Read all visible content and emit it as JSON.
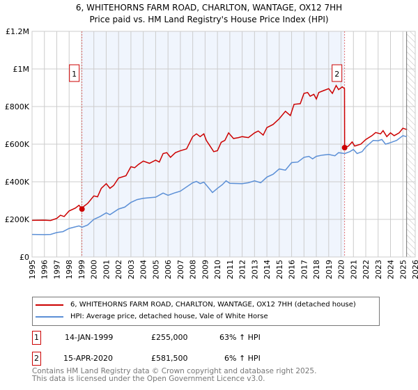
{
  "title": "6, WHITEHORNS FARM ROAD, CHARLTON, WANTAGE, OX12 7HH",
  "subtitle": "Price paid vs. HM Land Registry's House Price Index (HPI)",
  "chart_data": {
    "type": "line",
    "xlim": [
      1995,
      2026
    ],
    "ylim": [
      0,
      1200000
    ],
    "x_ticks": [
      "1995",
      "1996",
      "1997",
      "1998",
      "1999",
      "2000",
      "2001",
      "2002",
      "2003",
      "2004",
      "2005",
      "2006",
      "2007",
      "2008",
      "2009",
      "2010",
      "2011",
      "2012",
      "2013",
      "2014",
      "2015",
      "2016",
      "2017",
      "2018",
      "2019",
      "2020",
      "2021",
      "2022",
      "2023",
      "2024",
      "2025",
      "2026"
    ],
    "y_ticks": [
      {
        "v": 0,
        "label": "£0"
      },
      {
        "v": 200000,
        "label": "£200K"
      },
      {
        "v": 400000,
        "label": "£400K"
      },
      {
        "v": 600000,
        "label": "£600K"
      },
      {
        "v": 800000,
        "label": "£800K"
      },
      {
        "v": 1000000,
        "label": "£1M"
      },
      {
        "v": 1200000,
        "label": "£1.2M"
      }
    ],
    "grid": true,
    "shaded_range": [
      1999.04,
      2020.29
    ],
    "hatched_from": 2025.3,
    "series": [
      {
        "name": "6, WHITEHORNS FARM ROAD, CHARLTON, WANTAGE, OX12 7HH (detached house)",
        "color": "#cc0000",
        "points": [
          [
            1995,
            195000
          ],
          [
            1996,
            196000
          ],
          [
            1996.5,
            194000
          ],
          [
            1997,
            205000
          ],
          [
            1997.3,
            222000
          ],
          [
            1997.6,
            215000
          ],
          [
            1998,
            245000
          ],
          [
            1998.5,
            260000
          ],
          [
            1998.8,
            275000
          ],
          [
            1999.04,
            255000
          ],
          [
            1999.2,
            270000
          ],
          [
            1999.5,
            285000
          ],
          [
            2000,
            325000
          ],
          [
            2000.3,
            320000
          ],
          [
            2000.6,
            365000
          ],
          [
            2001,
            390000
          ],
          [
            2001.3,
            365000
          ],
          [
            2001.6,
            380000
          ],
          [
            2002,
            420000
          ],
          [
            2002.6,
            432000
          ],
          [
            2003,
            480000
          ],
          [
            2003.3,
            475000
          ],
          [
            2003.6,
            492000
          ],
          [
            2004,
            510000
          ],
          [
            2004.5,
            498000
          ],
          [
            2005,
            515000
          ],
          [
            2005.3,
            505000
          ],
          [
            2005.6,
            550000
          ],
          [
            2005.9,
            555000
          ],
          [
            2006.2,
            530000
          ],
          [
            2006.6,
            555000
          ],
          [
            2007,
            565000
          ],
          [
            2007.5,
            575000
          ],
          [
            2008,
            640000
          ],
          [
            2008.3,
            655000
          ],
          [
            2008.6,
            640000
          ],
          [
            2008.9,
            655000
          ],
          [
            2009.1,
            620000
          ],
          [
            2009.4,
            590000
          ],
          [
            2009.7,
            560000
          ],
          [
            2010,
            565000
          ],
          [
            2010.3,
            610000
          ],
          [
            2010.6,
            620000
          ],
          [
            2010.9,
            660000
          ],
          [
            2011.3,
            630000
          ],
          [
            2011.7,
            635000
          ],
          [
            2012,
            640000
          ],
          [
            2012.5,
            635000
          ],
          [
            2013,
            660000
          ],
          [
            2013.3,
            670000
          ],
          [
            2013.7,
            648000
          ],
          [
            2014,
            688000
          ],
          [
            2014.5,
            705000
          ],
          [
            2015,
            735000
          ],
          [
            2015.5,
            775000
          ],
          [
            2015.9,
            752000
          ],
          [
            2016.2,
            812000
          ],
          [
            2016.7,
            815000
          ],
          [
            2017,
            870000
          ],
          [
            2017.3,
            875000
          ],
          [
            2017.5,
            855000
          ],
          [
            2017.8,
            865000
          ],
          [
            2018,
            840000
          ],
          [
            2018.2,
            875000
          ],
          [
            2018.6,
            885000
          ],
          [
            2019,
            895000
          ],
          [
            2019.3,
            870000
          ],
          [
            2019.6,
            912000
          ],
          [
            2019.8,
            890000
          ],
          [
            2020.1,
            905000
          ],
          [
            2020.28,
            895000
          ],
          [
            2020.29,
            581500
          ],
          [
            2020.6,
            590000
          ],
          [
            2020.9,
            612000
          ],
          [
            2021.1,
            590000
          ],
          [
            2021.6,
            600000
          ],
          [
            2022,
            625000
          ],
          [
            2022.5,
            645000
          ],
          [
            2022.8,
            662000
          ],
          [
            2023.2,
            655000
          ],
          [
            2023.4,
            672000
          ],
          [
            2023.7,
            640000
          ],
          [
            2024,
            660000
          ],
          [
            2024.3,
            645000
          ],
          [
            2024.7,
            660000
          ],
          [
            2025,
            685000
          ],
          [
            2025.3,
            678000
          ]
        ]
      },
      {
        "name": "HPI: Average price, detached house, Vale of White Horse",
        "color": "#5b8fd6",
        "points": [
          [
            1995,
            120000
          ],
          [
            1996,
            119000
          ],
          [
            1996.5,
            120000
          ],
          [
            1997,
            130000
          ],
          [
            1997.5,
            135000
          ],
          [
            1998,
            152000
          ],
          [
            1998.8,
            165000
          ],
          [
            1999.04,
            158000
          ],
          [
            1999.5,
            170000
          ],
          [
            2000,
            200000
          ],
          [
            2000.5,
            215000
          ],
          [
            2001,
            235000
          ],
          [
            2001.3,
            225000
          ],
          [
            2002,
            255000
          ],
          [
            2002.5,
            265000
          ],
          [
            2003,
            290000
          ],
          [
            2003.5,
            305000
          ],
          [
            2004,
            312000
          ],
          [
            2004.5,
            315000
          ],
          [
            2005,
            318000
          ],
          [
            2005.6,
            340000
          ],
          [
            2006,
            328000
          ],
          [
            2006.5,
            340000
          ],
          [
            2007,
            350000
          ],
          [
            2008,
            395000
          ],
          [
            2008.3,
            402000
          ],
          [
            2008.6,
            390000
          ],
          [
            2008.9,
            398000
          ],
          [
            2009.2,
            375000
          ],
          [
            2009.6,
            343000
          ],
          [
            2010,
            365000
          ],
          [
            2010.4,
            385000
          ],
          [
            2010.7,
            405000
          ],
          [
            2011,
            392000
          ],
          [
            2012,
            390000
          ],
          [
            2012.5,
            395000
          ],
          [
            2013,
            405000
          ],
          [
            2013.5,
            395000
          ],
          [
            2014,
            425000
          ],
          [
            2014.5,
            440000
          ],
          [
            2015,
            468000
          ],
          [
            2015.5,
            462000
          ],
          [
            2016,
            502000
          ],
          [
            2016.5,
            505000
          ],
          [
            2017,
            530000
          ],
          [
            2017.4,
            535000
          ],
          [
            2017.7,
            522000
          ],
          [
            2018,
            535000
          ],
          [
            2018.5,
            542000
          ],
          [
            2019,
            545000
          ],
          [
            2019.5,
            538000
          ],
          [
            2019.8,
            555000
          ],
          [
            2020.3,
            550000
          ],
          [
            2020.7,
            560000
          ],
          [
            2021,
            572000
          ],
          [
            2021.3,
            550000
          ],
          [
            2021.7,
            560000
          ],
          [
            2022,
            585000
          ],
          [
            2022.6,
            620000
          ],
          [
            2023,
            618000
          ],
          [
            2023.3,
            625000
          ],
          [
            2023.6,
            600000
          ],
          [
            2024,
            608000
          ],
          [
            2024.5,
            620000
          ],
          [
            2025,
            645000
          ],
          [
            2025.3,
            640000
          ]
        ]
      }
    ],
    "sales": [
      {
        "label": "1",
        "x": 1999.04,
        "value": 255000
      },
      {
        "label": "2",
        "x": 2020.29,
        "value": 581500
      }
    ]
  },
  "legend": {
    "property": "6, WHITEHORNS FARM ROAD, CHARLTON, WANTAGE, OX12 7HH (detached house)",
    "hpi": "HPI: Average price, detached house, Vale of White Horse"
  },
  "transactions": [
    {
      "num": "1",
      "date": "14-JAN-1999",
      "price": "£255,000",
      "hpi": "63% ↑ HPI"
    },
    {
      "num": "2",
      "date": "15-APR-2020",
      "price": "£581,500",
      "hpi": "6% ↑ HPI"
    }
  ],
  "footer": {
    "line1": "Contains HM Land Registry data © Crown copyright and database right 2025.",
    "line2": "This data is licensed under the Open Government Licence v3.0."
  }
}
